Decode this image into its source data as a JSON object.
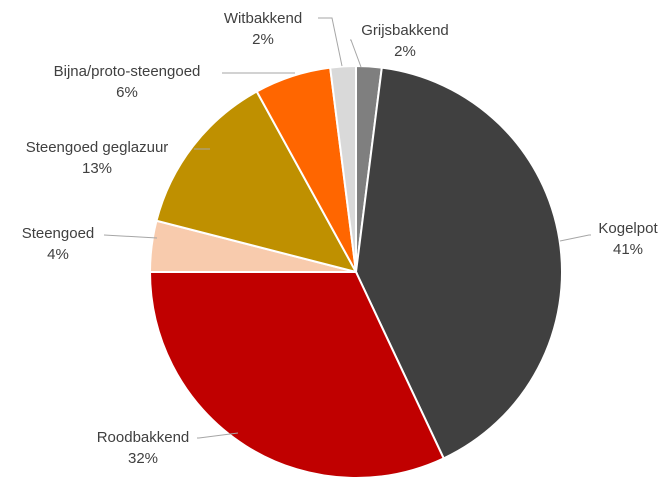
{
  "chart_data": {
    "type": "pie",
    "title": "",
    "categories": [
      "Grijsbakkend",
      "Kogelpot",
      "Roodbakkend",
      "Steengoed",
      "Steengoed geglazuur",
      "Bijna/proto-steengoed",
      "Witbakkend"
    ],
    "values": [
      2,
      41,
      32,
      4,
      13,
      6,
      2
    ],
    "value_labels": [
      "2%",
      "41%",
      "32%",
      "4%",
      "13%",
      "6%",
      "2%"
    ],
    "colors": [
      "#7f7f7f",
      "#404040",
      "#c00000",
      "#f8cbad",
      "#bf9000",
      "#ff6600",
      "#d9d9d9"
    ],
    "start_angle_deg": 0,
    "direction": "clockwise",
    "legend": "none",
    "data_labels": "outside-with-leaders"
  }
}
